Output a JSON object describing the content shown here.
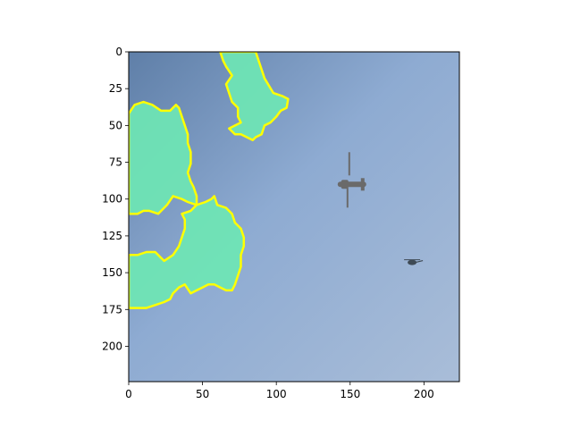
{
  "chart_data": {
    "type": "image",
    "title": "",
    "xlabel": "",
    "ylabel": "",
    "xlim": [
      0,
      224
    ],
    "ylim": [
      224,
      0
    ],
    "y_axis_inverted": true,
    "x_ticks": [
      0,
      50,
      100,
      150,
      200
    ],
    "y_ticks": [
      0,
      25,
      50,
      75,
      100,
      125,
      150,
      175,
      200
    ],
    "grid": false,
    "legend": "none",
    "colors": {
      "sky_dark": "#5f7fa8",
      "sky_mid": "#8eabd2",
      "sky_light": "#a9bdd8",
      "mask_fill": "#6ee6b4",
      "mask_outline": "#ffff00",
      "aircraft": "#6a6a6a"
    },
    "mask_regions": [
      {
        "name": "top-middle-region",
        "polygon": [
          [
            62,
            0
          ],
          [
            86,
            0
          ],
          [
            88,
            6
          ],
          [
            90,
            12
          ],
          [
            92,
            18
          ],
          [
            98,
            28
          ],
          [
            104,
            30
          ],
          [
            108,
            32
          ],
          [
            107,
            38
          ],
          [
            103,
            40
          ],
          [
            100,
            44
          ],
          [
            96,
            48
          ],
          [
            92,
            50
          ],
          [
            90,
            56
          ],
          [
            86,
            58
          ],
          [
            84,
            60
          ],
          [
            80,
            58
          ],
          [
            76,
            56
          ],
          [
            74,
            56
          ],
          [
            72,
            56
          ],
          [
            70,
            54
          ],
          [
            68,
            52
          ],
          [
            76,
            48
          ],
          [
            74,
            44
          ],
          [
            74,
            38
          ],
          [
            70,
            34
          ],
          [
            68,
            28
          ],
          [
            66,
            22
          ],
          [
            70,
            16
          ],
          [
            66,
            10
          ],
          [
            64,
            6
          ]
        ]
      },
      {
        "name": "left-upper-region",
        "polygon": [
          [
            0,
            42
          ],
          [
            4,
            36
          ],
          [
            10,
            34
          ],
          [
            16,
            36
          ],
          [
            22,
            40
          ],
          [
            28,
            40
          ],
          [
            32,
            36
          ],
          [
            34,
            38
          ],
          [
            36,
            44
          ],
          [
            38,
            50
          ],
          [
            40,
            56
          ],
          [
            40,
            62
          ],
          [
            42,
            68
          ],
          [
            42,
            76
          ],
          [
            40,
            82
          ],
          [
            42,
            88
          ],
          [
            44,
            92
          ],
          [
            46,
            98
          ],
          [
            46,
            104
          ],
          [
            40,
            102
          ],
          [
            36,
            100
          ],
          [
            30,
            98
          ],
          [
            26,
            104
          ],
          [
            20,
            110
          ],
          [
            14,
            108
          ],
          [
            10,
            108
          ],
          [
            6,
            110
          ],
          [
            0,
            110
          ]
        ]
      },
      {
        "name": "left-lower-region",
        "polygon": [
          [
            0,
            138
          ],
          [
            6,
            138
          ],
          [
            12,
            136
          ],
          [
            18,
            136
          ],
          [
            24,
            142
          ],
          [
            30,
            138
          ],
          [
            34,
            132
          ],
          [
            36,
            126
          ],
          [
            38,
            120
          ],
          [
            38,
            114
          ],
          [
            36,
            110
          ],
          [
            42,
            108
          ],
          [
            46,
            104
          ],
          [
            52,
            102
          ],
          [
            56,
            100
          ],
          [
            58,
            98
          ],
          [
            60,
            104
          ],
          [
            66,
            106
          ],
          [
            70,
            110
          ],
          [
            72,
            116
          ],
          [
            76,
            120
          ],
          [
            78,
            126
          ],
          [
            78,
            132
          ],
          [
            76,
            138
          ],
          [
            76,
            146
          ],
          [
            74,
            152
          ],
          [
            72,
            158
          ],
          [
            70,
            162
          ],
          [
            66,
            162
          ],
          [
            62,
            160
          ],
          [
            58,
            158
          ],
          [
            54,
            158
          ],
          [
            50,
            160
          ],
          [
            46,
            162
          ],
          [
            42,
            164
          ],
          [
            38,
            158
          ],
          [
            34,
            160
          ],
          [
            30,
            164
          ],
          [
            28,
            168
          ],
          [
            24,
            170
          ],
          [
            18,
            172
          ],
          [
            12,
            174
          ],
          [
            6,
            174
          ],
          [
            0,
            174
          ]
        ]
      }
    ],
    "objects": [
      {
        "name": "tiltrotor-aircraft",
        "center": [
          150,
          90
        ]
      },
      {
        "name": "helicopter",
        "center": [
          192,
          143
        ]
      }
    ]
  }
}
